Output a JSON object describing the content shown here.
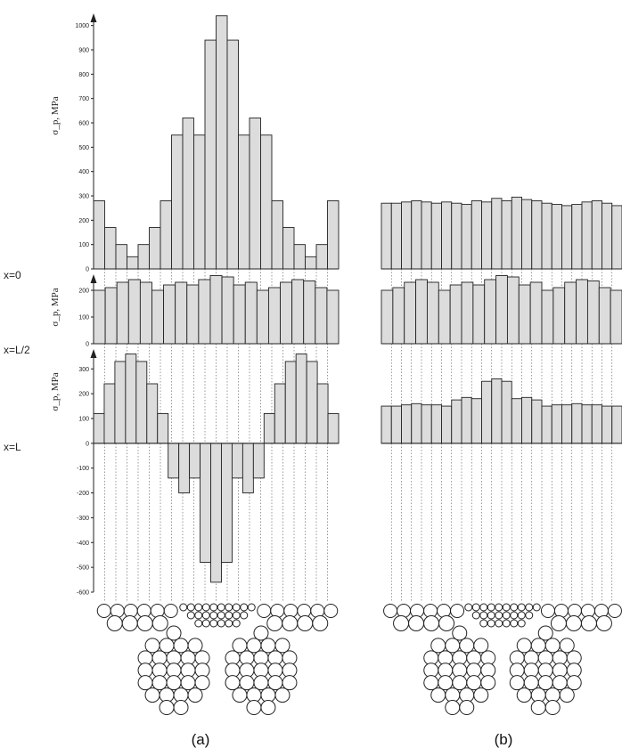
{
  "row_labels": [
    "x=0",
    "x=L/2",
    "x=L"
  ],
  "captions": [
    "(a)",
    "(b)"
  ],
  "chart_data": [
    {
      "type": "bar",
      "panel": "(a)",
      "row": "x=0",
      "ylabel": "σ_p, MPa",
      "ylim": [
        0,
        1050
      ],
      "yticks": [
        0,
        100,
        200,
        300,
        400,
        500,
        600,
        700,
        800,
        900,
        1000
      ],
      "values": [
        280,
        170,
        100,
        50,
        100,
        170,
        280,
        550,
        620,
        550,
        940,
        1040,
        940,
        550,
        620,
        550,
        280,
        170,
        100,
        50,
        100,
        280
      ]
    },
    {
      "type": "bar",
      "panel": "(a)",
      "row": "x=L/2",
      "ylabel": "σ_p, MPa",
      "ylim": [
        0,
        260
      ],
      "yticks": [
        0,
        100,
        200
      ],
      "values": [
        200,
        210,
        230,
        240,
        230,
        200,
        220,
        230,
        220,
        240,
        255,
        250,
        220,
        230,
        200,
        210,
        230,
        240,
        235,
        210,
        200
      ]
    },
    {
      "type": "bar",
      "panel": "(a)",
      "row": "x=L",
      "ylabel": "σ_p, MPa",
      "ylim": [
        -600,
        380
      ],
      "yticks": [
        -600,
        -500,
        -400,
        -300,
        -200,
        -100,
        0,
        100,
        200,
        300
      ],
      "values": [
        120,
        240,
        330,
        360,
        330,
        240,
        120,
        -140,
        -200,
        -140,
        -480,
        -560,
        -480,
        -140,
        -200,
        -140,
        120,
        240,
        330,
        360,
        330,
        240,
        120
      ]
    },
    {
      "type": "bar",
      "panel": "(b)",
      "row": "x=0",
      "ylim": [
        0,
        1050
      ],
      "values": [
        270,
        270,
        275,
        280,
        275,
        270,
        275,
        270,
        265,
        280,
        275,
        290,
        280,
        295,
        285,
        280,
        270,
        265,
        260,
        265,
        275,
        280,
        270,
        260
      ]
    },
    {
      "type": "bar",
      "panel": "(b)",
      "row": "x=L/2",
      "ylim": [
        0,
        260
      ],
      "values": [
        200,
        210,
        230,
        240,
        230,
        200,
        220,
        230,
        220,
        240,
        255,
        250,
        220,
        230,
        200,
        210,
        230,
        240,
        235,
        210,
        200
      ]
    },
    {
      "type": "bar",
      "panel": "(b)",
      "row": "x=L",
      "ylim": [
        -600,
        380
      ],
      "values": [
        150,
        150,
        155,
        160,
        155,
        155,
        150,
        175,
        185,
        180,
        250,
        260,
        250,
        180,
        185,
        175,
        150,
        155,
        155,
        160,
        155,
        155,
        150,
        150
      ]
    }
  ]
}
